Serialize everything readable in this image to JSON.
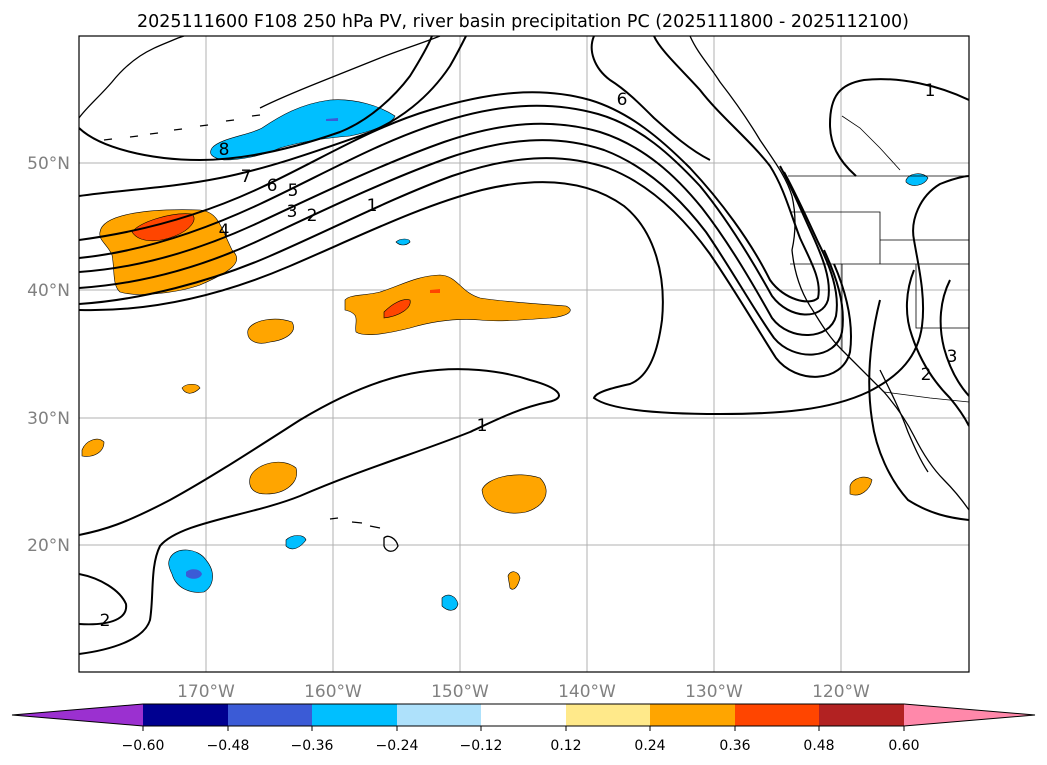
{
  "title": "2025111600 F108 250 hPa PV, river basin precipitation PC (2025111800 - 2025112100)",
  "map": {
    "lat_labels": [
      {
        "label": "50°N",
        "lat": 50
      },
      {
        "label": "40°N",
        "lat": 40
      },
      {
        "label": "30°N",
        "lat": 30
      },
      {
        "label": "20°N",
        "lat": 20
      }
    ],
    "lon_labels": [
      {
        "label": "170°W",
        "lon": -170
      },
      {
        "label": "160°W",
        "lon": -160
      },
      {
        "label": "150°W",
        "lon": -150
      },
      {
        "label": "140°W",
        "lon": -140
      },
      {
        "label": "130°W",
        "lon": -130
      },
      {
        "label": "120°W",
        "lon": -120
      }
    ],
    "pv_contour_labels": [
      "1",
      "2",
      "3",
      "4",
      "5",
      "6",
      "7",
      "8"
    ]
  },
  "colorbar": {
    "ticks": [
      "−0.60",
      "−0.48",
      "−0.36",
      "−0.24",
      "−0.12",
      "0.12",
      "0.24",
      "0.36",
      "0.48",
      "0.60"
    ],
    "colors": [
      "#9b30d0",
      "#000090",
      "#3b5bd6",
      "#00bfff",
      "#aee1fb",
      "#ffffff",
      "#ffe98a",
      "#ffa500",
      "#ff4500",
      "#b22222",
      "#ff88aa"
    ]
  }
}
